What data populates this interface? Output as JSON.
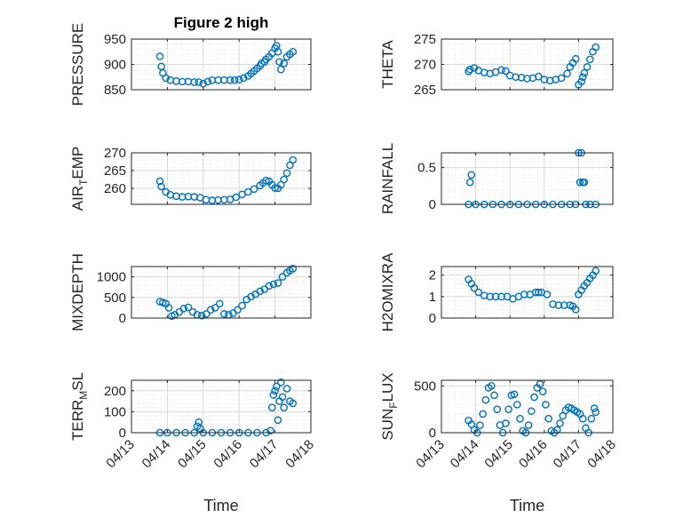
{
  "figure": {
    "title": "Figure 2 high",
    "xlabel": "Time",
    "date_ticks": [
      "04/13",
      "04/14",
      "04/15",
      "04/16",
      "04/17",
      "04/18"
    ],
    "marker_color": "#0072BD",
    "axes_color": "#262626",
    "grid_color": "#d9d9d9",
    "grid": true,
    "minor_grid": true,
    "marker": "open-circle"
  },
  "chart_data": [
    {
      "type": "scatter",
      "ylabel": "PRESSURE",
      "ylabel_sub": "",
      "ylabel_tail": "",
      "xlim": [
        "04/13",
        "04/18"
      ],
      "ylim": [
        850,
        950
      ],
      "yticks": [
        850,
        900,
        950
      ],
      "x": [
        "04/13 19:00",
        "04/13 20:00",
        "04/13 21:00",
        "04/13 23:00",
        "04/14 02:00",
        "04/14 06:00",
        "04/14 10:00",
        "04/14 14:00",
        "04/14 18:00",
        "04/14 21:00",
        "04/15 00:00",
        "04/15 03:00",
        "04/15 06:00",
        "04/15 10:00",
        "04/15 14:00",
        "04/15 18:00",
        "04/15 21:00",
        "04/16 00:00",
        "04/16 03:00",
        "04/16 06:00",
        "04/16 08:00",
        "04/16 10:00",
        "04/16 12:00",
        "04/16 14:00",
        "04/16 15:00",
        "04/16 17:00",
        "04/16 18:00",
        "04/16 20:00",
        "04/16 22:00",
        "04/17 00:00",
        "04/17 01:00",
        "04/17 02:00",
        "04/17 03:00",
        "04/17 04:00",
        "04/17 06:00",
        "04/17 08:00",
        "04/17 10:00",
        "04/17 12:00"
      ],
      "y": [
        916,
        896,
        883,
        873,
        869,
        867,
        866,
        866,
        865,
        865,
        862,
        866,
        869,
        869,
        869,
        869,
        869,
        870,
        873,
        877,
        882,
        887,
        892,
        897,
        902,
        905,
        910,
        915,
        922,
        932,
        937,
        925,
        905,
        890,
        902,
        915,
        920,
        925
      ]
    },
    {
      "type": "scatter",
      "ylabel": "THETA",
      "ylabel_sub": "",
      "ylabel_tail": "",
      "xlim": [
        "04/13",
        "04/18"
      ],
      "ylim": [
        265,
        275
      ],
      "yticks": [
        265,
        270,
        275
      ],
      "x": [
        "04/13 19:00",
        "04/13 20:00",
        "04/13 23:00",
        "04/14 02:00",
        "04/14 06:00",
        "04/14 10:00",
        "04/14 14:00",
        "04/14 18:00",
        "04/14 21:00",
        "04/15 00:00",
        "04/15 04:00",
        "04/15 08:00",
        "04/15 12:00",
        "04/15 16:00",
        "04/15 20:00",
        "04/16 00:00",
        "04/16 04:00",
        "04/16 08:00",
        "04/16 12:00",
        "04/16 16:00",
        "04/16 18:00",
        "04/16 20:00",
        "04/16 22:00",
        "04/17 00:00",
        "04/17 02:00",
        "04/17 03:00",
        "04/17 04:00",
        "04/17 06:00",
        "04/17 08:00",
        "04/17 10:00",
        "04/17 12:00"
      ],
      "y": [
        268.6,
        269.0,
        269.3,
        268.8,
        268.4,
        268.2,
        268.5,
        268.9,
        268.7,
        267.8,
        267.5,
        267.4,
        267.2,
        267.3,
        267.6,
        267.0,
        266.8,
        267.0,
        267.3,
        268.2,
        269.5,
        270.3,
        271.1,
        266.0,
        266.6,
        267.5,
        268.3,
        269.5,
        271.0,
        272.5,
        273.4
      ]
    },
    {
      "type": "scatter",
      "ylabel": "AIR",
      "ylabel_sub": "T",
      "ylabel_tail": "EMP",
      "xlim": [
        "04/13",
        "04/18"
      ],
      "ylim": [
        255.5,
        270
      ],
      "yticks": [
        260,
        265,
        270
      ],
      "x": [
        "04/13 19:00",
        "04/13 20:00",
        "04/13 23:00",
        "04/14 02:00",
        "04/14 06:00",
        "04/14 10:00",
        "04/14 14:00",
        "04/14 18:00",
        "04/14 22:00",
        "04/15 02:00",
        "04/15 06:00",
        "04/15 10:00",
        "04/15 14:00",
        "04/15 18:00",
        "04/15 22:00",
        "04/16 02:00",
        "04/16 06:00",
        "04/16 10:00",
        "04/16 14:00",
        "04/16 16:00",
        "04/16 18:00",
        "04/16 20:00",
        "04/16 22:00",
        "04/17 00:00",
        "04/17 02:00",
        "04/17 04:00",
        "04/17 06:00",
        "04/17 08:00",
        "04/17 10:00",
        "04/17 12:00"
      ],
      "y": [
        262.0,
        260.5,
        259.0,
        258.2,
        257.8,
        257.6,
        257.7,
        257.6,
        257.4,
        256.8,
        256.6,
        256.7,
        256.8,
        256.9,
        257.5,
        258.3,
        259.0,
        259.8,
        260.8,
        261.5,
        262.2,
        262.0,
        261.0,
        260.1,
        260.0,
        261.0,
        262.5,
        264.3,
        266.5,
        268.0
      ]
    },
    {
      "type": "scatter",
      "ylabel": "RAINFALL",
      "ylabel_sub": "",
      "ylabel_tail": "",
      "xlim": [
        "04/13",
        "04/18"
      ],
      "ylim": [
        0,
        0.7
      ],
      "yticks": [
        0,
        0.5
      ],
      "x": [
        "04/13 19:00",
        "04/13 20:00",
        "04/13 21:00",
        "04/14 00:00",
        "04/14 06:00",
        "04/14 12:00",
        "04/14 18:00",
        "04/15 00:00",
        "04/15 06:00",
        "04/15 12:00",
        "04/15 18:00",
        "04/16 00:00",
        "04/16 06:00",
        "04/16 12:00",
        "04/16 18:00",
        "04/16 22:00",
        "04/17 00:00",
        "04/17 01:00",
        "04/17 02:00",
        "04/17 03:00",
        "04/17 04:00",
        "04/17 05:00",
        "04/17 08:00",
        "04/17 12:00"
      ],
      "y": [
        0,
        0.3,
        0.4,
        0,
        0,
        0,
        0,
        0,
        0,
        0,
        0,
        0,
        0,
        0,
        0,
        0,
        0.7,
        0.3,
        0.7,
        0.3,
        0.3,
        0,
        0,
        0
      ]
    },
    {
      "type": "scatter",
      "ylabel": "MIXDEPTH",
      "ylabel_sub": "",
      "ylabel_tail": "",
      "xlim": [
        "04/13",
        "04/18"
      ],
      "ylim": [
        0,
        1250
      ],
      "yticks": [
        0,
        500,
        1000
      ],
      "x": [
        "04/13 19:00",
        "04/13 21:00",
        "04/13 23:00",
        "04/14 01:00",
        "04/14 03:00",
        "04/14 05:00",
        "04/14 08:00",
        "04/14 11:00",
        "04/14 14:00",
        "04/14 17:00",
        "04/14 20:00",
        "04/14 23:00",
        "04/15 02:00",
        "04/15 05:00",
        "04/15 08:00",
        "04/15 11:00",
        "04/15 14:00",
        "04/15 17:00",
        "04/15 20:00",
        "04/15 23:00",
        "04/16 02:00",
        "04/16 05:00",
        "04/16 08:00",
        "04/16 11:00",
        "04/16 14:00",
        "04/16 17:00",
        "04/16 20:00",
        "04/16 23:00",
        "04/17 02:00",
        "04/17 05:00",
        "04/17 08:00",
        "04/17 10:00",
        "04/17 12:00"
      ],
      "y": [
        400,
        380,
        350,
        250,
        50,
        80,
        150,
        230,
        260,
        150,
        80,
        60,
        100,
        200,
        250,
        350,
        100,
        80,
        120,
        200,
        300,
        450,
        520,
        580,
        650,
        700,
        780,
        820,
        850,
        1000,
        1100,
        1150,
        1200
      ]
    },
    {
      "type": "scatter",
      "ylabel": "H2OMIXRA",
      "ylabel_sub": "",
      "ylabel_tail": "",
      "xlim": [
        "04/13",
        "04/18"
      ],
      "ylim": [
        0,
        2.4
      ],
      "yticks": [
        0,
        1,
        2
      ],
      "x": [
        "04/13 19:00",
        "04/13 21:00",
        "04/13 23:00",
        "04/14 02:00",
        "04/14 06:00",
        "04/14 10:00",
        "04/14 14:00",
        "04/14 18:00",
        "04/14 22:00",
        "04/15 02:00",
        "04/15 06:00",
        "04/15 10:00",
        "04/15 14:00",
        "04/15 18:00",
        "04/15 20:00",
        "04/15 22:00",
        "04/16 02:00",
        "04/16 06:00",
        "04/16 10:00",
        "04/16 14:00",
        "04/16 18:00",
        "04/16 20:00",
        "04/16 22:00",
        "04/17 00:00",
        "04/17 02:00",
        "04/17 04:00",
        "04/17 06:00",
        "04/17 08:00",
        "04/17 10:00",
        "04/17 12:00"
      ],
      "y": [
        1.8,
        1.6,
        1.4,
        1.2,
        1.05,
        1.0,
        1.0,
        1.0,
        1.0,
        0.9,
        1.0,
        1.1,
        1.1,
        1.2,
        1.2,
        1.2,
        1.1,
        0.65,
        0.6,
        0.6,
        0.6,
        0.55,
        0.4,
        1.1,
        1.3,
        1.5,
        1.65,
        1.85,
        2.0,
        2.2
      ]
    },
    {
      "type": "scatter",
      "ylabel": "TERR",
      "ylabel_sub": "M",
      "ylabel_tail": "SL",
      "xlim": [
        "04/13",
        "04/18"
      ],
      "ylim": [
        0,
        250
      ],
      "yticks": [
        0,
        100,
        200
      ],
      "x": [
        "04/13 19:00",
        "04/14 00:00",
        "04/14 06:00",
        "04/14 12:00",
        "04/14 18:00",
        "04/14 20:00",
        "04/14 21:00",
        "04/14 22:00",
        "04/15 00:00",
        "04/15 06:00",
        "04/15 12:00",
        "04/15 18:00",
        "04/16 00:00",
        "04/16 06:00",
        "04/16 12:00",
        "04/16 18:00",
        "04/16 21:00",
        "04/16 22:00",
        "04/16 23:00",
        "04/17 00:00",
        "04/17 01:00",
        "04/17 02:00",
        "04/17 03:00",
        "04/17 04:00",
        "04/17 05:00",
        "04/17 06:00",
        "04/17 08:00",
        "04/17 10:00",
        "04/17 12:00"
      ],
      "y": [
        0,
        0,
        0,
        0,
        0,
        30,
        50,
        20,
        0,
        0,
        0,
        0,
        0,
        0,
        0,
        0,
        10,
        120,
        180,
        200,
        220,
        60,
        150,
        240,
        170,
        120,
        210,
        150,
        140
      ]
    },
    {
      "type": "scatter",
      "ylabel": "SUN",
      "ylabel_sub": "F",
      "ylabel_tail": "LUX",
      "xlim": [
        "04/13",
        "04/18"
      ],
      "ylim": [
        0,
        560
      ],
      "yticks": [
        0,
        500
      ],
      "x": [
        "04/13 19:00",
        "04/13 21:00",
        "04/13 23:00",
        "04/14 01:00",
        "04/14 03:00",
        "04/14 05:00",
        "04/14 07:00",
        "04/14 09:00",
        "04/14 11:00",
        "04/14 13:00",
        "04/14 15:00",
        "04/14 17:00",
        "04/14 19:00",
        "04/14 21:00",
        "04/14 23:00",
        "04/15 01:00",
        "04/15 03:00",
        "04/15 05:00",
        "04/15 07:00",
        "04/15 09:00",
        "04/15 11:00",
        "04/15 13:00",
        "04/15 15:00",
        "04/15 17:00",
        "04/15 19:00",
        "04/15 21:00",
        "04/15 23:00",
        "04/16 01:00",
        "04/16 03:00",
        "04/16 05:00",
        "04/16 07:00",
        "04/16 09:00",
        "04/16 11:00",
        "04/16 13:00",
        "04/16 15:00",
        "04/16 17:00",
        "04/16 19:00",
        "04/16 21:00",
        "04/16 23:00",
        "04/17 01:00",
        "04/17 03:00",
        "04/17 05:00",
        "04/17 07:00",
        "04/17 09:00",
        "04/17 11:00",
        "04/17 12:00"
      ],
      "y": [
        130,
        90,
        30,
        0,
        80,
        200,
        350,
        480,
        500,
        400,
        250,
        80,
        0,
        100,
        250,
        400,
        410,
        300,
        150,
        20,
        0,
        80,
        230,
        380,
        480,
        520,
        440,
        300,
        150,
        20,
        0,
        30,
        100,
        180,
        240,
        270,
        260,
        240,
        220,
        200,
        150,
        50,
        0,
        150,
        260,
        220
      ]
    }
  ]
}
